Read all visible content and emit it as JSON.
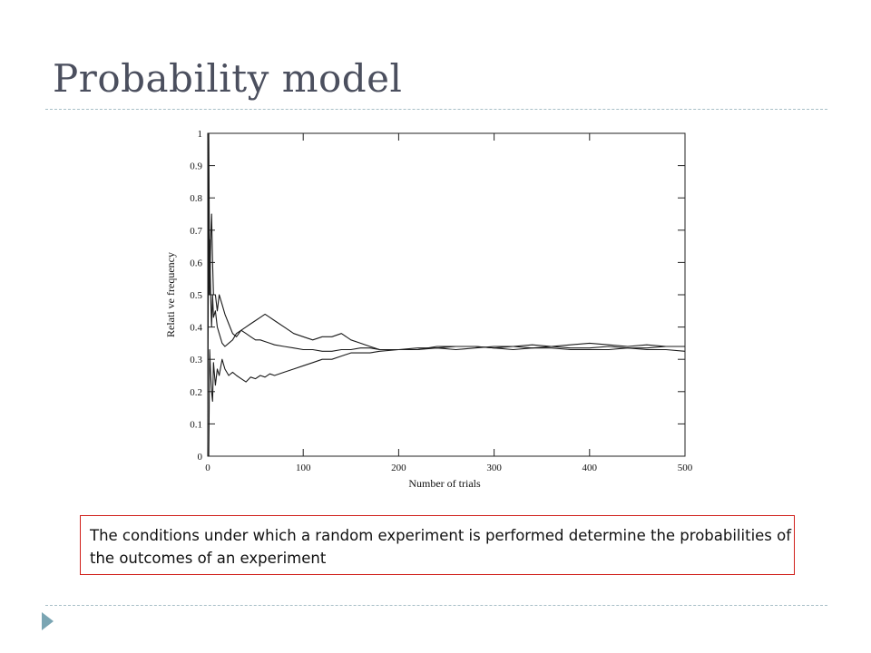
{
  "slide": {
    "title": "Probability model",
    "callout": "The conditions under which a random experiment is performed determine the probabilities of the outcomes of an experiment"
  },
  "chart_data": {
    "type": "line",
    "xlabel": "Number of trials",
    "ylabel": "Relati ve frequency",
    "xlim": [
      0,
      500
    ],
    "ylim": [
      0,
      1
    ],
    "x_ticks": [
      0,
      100,
      200,
      300,
      400,
      500
    ],
    "y_ticks": [
      0,
      0.1,
      0.2,
      0.3,
      0.4,
      0.5,
      0.6,
      0.7,
      0.8,
      0.9,
      1
    ],
    "y_tick_labels": [
      "0",
      "0.1",
      "0.2",
      "0.3",
      "0.4",
      "0.5",
      "0.6",
      "0.7",
      "0.8",
      "0.9",
      "1"
    ],
    "grid": false,
    "series": [
      {
        "x": [
          0,
          1,
          2,
          3,
          4,
          5,
          6,
          8,
          10,
          12,
          15,
          18,
          22,
          26,
          30,
          35,
          40,
          45,
          50,
          55,
          60,
          65,
          70,
          80,
          90,
          100,
          110,
          120,
          130,
          140,
          150,
          160,
          170,
          180,
          200,
          220,
          240,
          260,
          280,
          300,
          320,
          340,
          360,
          380,
          400,
          420,
          440,
          460,
          480,
          500
        ],
        "y": [
          0.0,
          1.0,
          0.5,
          0.67,
          0.75,
          0.6,
          0.5,
          0.5,
          0.45,
          0.5,
          0.47,
          0.44,
          0.41,
          0.38,
          0.37,
          0.39,
          0.4,
          0.41,
          0.42,
          0.43,
          0.44,
          0.43,
          0.42,
          0.4,
          0.38,
          0.37,
          0.36,
          0.37,
          0.37,
          0.38,
          0.36,
          0.35,
          0.34,
          0.33,
          0.33,
          0.33,
          0.34,
          0.34,
          0.34,
          0.335,
          0.33,
          0.335,
          0.34,
          0.345,
          0.35,
          0.345,
          0.34,
          0.345,
          0.34,
          0.34
        ]
      },
      {
        "x": [
          0,
          1,
          2,
          3,
          4,
          5,
          6,
          8,
          10,
          12,
          15,
          18,
          22,
          26,
          30,
          35,
          40,
          45,
          50,
          55,
          60,
          65,
          70,
          80,
          90,
          100,
          110,
          120,
          130,
          140,
          150,
          160,
          170,
          180,
          200,
          220,
          240,
          260,
          280,
          300,
          320,
          340,
          360,
          380,
          400,
          420,
          440,
          460,
          480,
          500
        ],
        "y": [
          1.0,
          0.5,
          0.67,
          0.5,
          0.4,
          0.5,
          0.43,
          0.45,
          0.4,
          0.38,
          0.35,
          0.34,
          0.35,
          0.36,
          0.38,
          0.39,
          0.38,
          0.37,
          0.36,
          0.36,
          0.355,
          0.35,
          0.345,
          0.34,
          0.335,
          0.33,
          0.33,
          0.325,
          0.325,
          0.33,
          0.33,
          0.335,
          0.335,
          0.33,
          0.33,
          0.335,
          0.335,
          0.34,
          0.34,
          0.335,
          0.34,
          0.345,
          0.34,
          0.335,
          0.335,
          0.34,
          0.335,
          0.33,
          0.33,
          0.325
        ]
      },
      {
        "x": [
          0,
          1,
          2,
          3,
          4,
          5,
          6,
          8,
          10,
          12,
          15,
          18,
          22,
          26,
          30,
          35,
          40,
          45,
          50,
          55,
          60,
          65,
          70,
          80,
          90,
          100,
          110,
          120,
          130,
          140,
          150,
          160,
          170,
          180,
          200,
          220,
          240,
          260,
          280,
          300,
          320,
          340,
          360,
          380,
          400,
          420,
          440,
          460,
          480,
          500
        ],
        "y": [
          0.0,
          0.0,
          0.33,
          0.25,
          0.2,
          0.17,
          0.29,
          0.22,
          0.27,
          0.25,
          0.3,
          0.27,
          0.25,
          0.26,
          0.25,
          0.24,
          0.23,
          0.245,
          0.24,
          0.25,
          0.245,
          0.255,
          0.25,
          0.26,
          0.27,
          0.28,
          0.29,
          0.3,
          0.3,
          0.31,
          0.32,
          0.32,
          0.32,
          0.325,
          0.33,
          0.33,
          0.335,
          0.33,
          0.335,
          0.34,
          0.34,
          0.335,
          0.335,
          0.33,
          0.33,
          0.33,
          0.335,
          0.335,
          0.34,
          0.34
        ]
      }
    ]
  }
}
